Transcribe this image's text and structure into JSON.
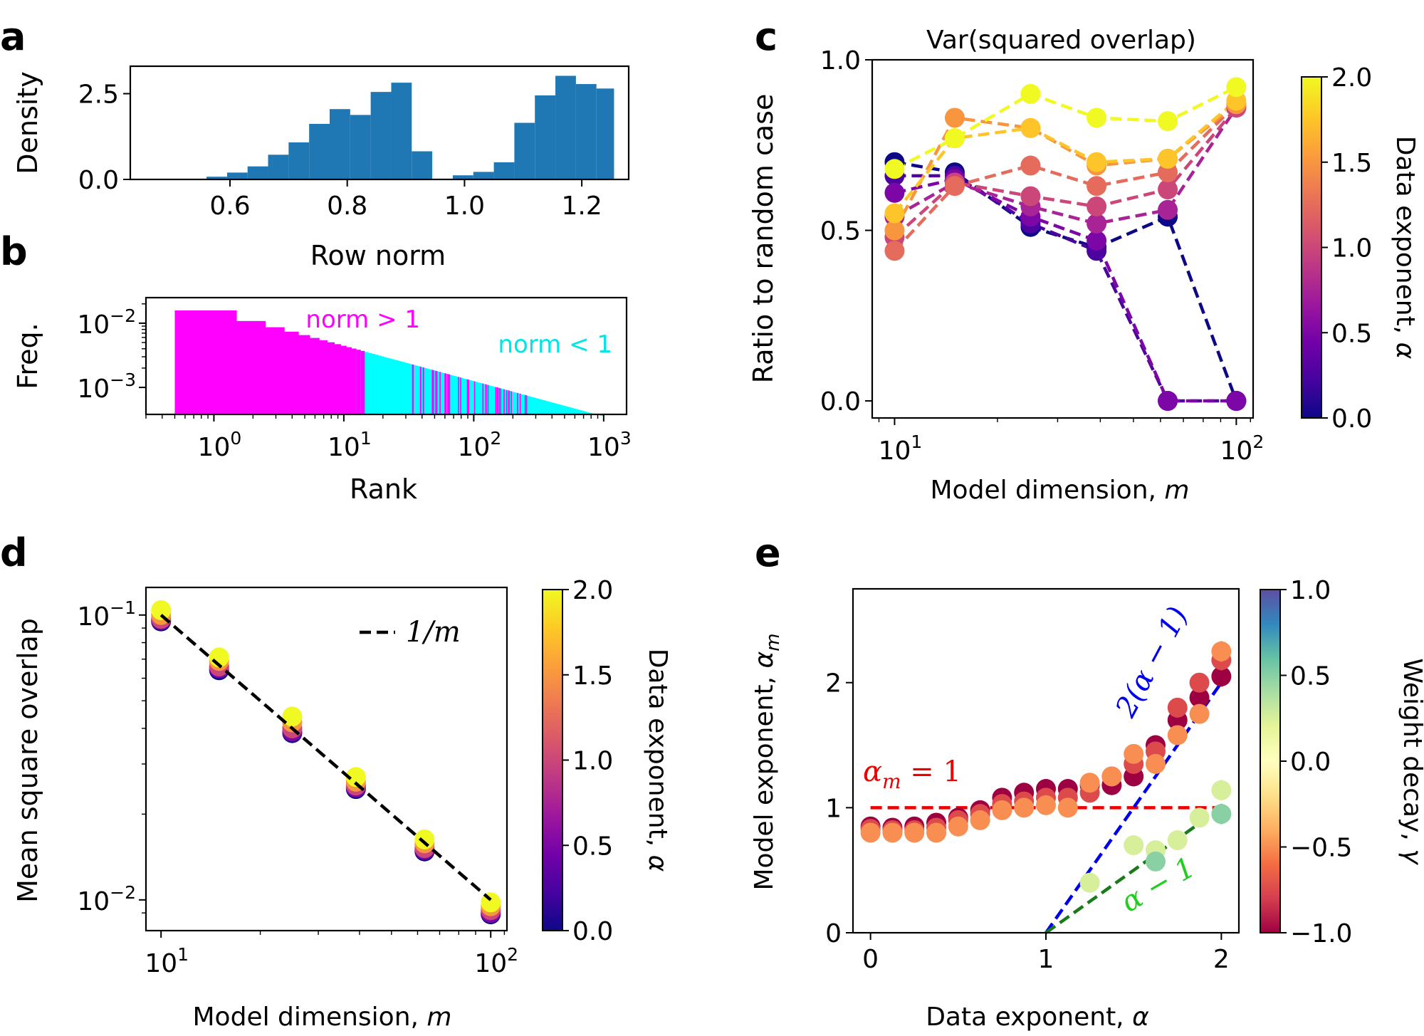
{
  "chart_data": [
    {
      "panel": "a",
      "type": "bar",
      "xlabel": "Row norm",
      "ylabel": "Density",
      "xlim": [
        0.43,
        1.28
      ],
      "ylim": [
        0,
        3.3
      ],
      "xticks": [
        "0.6",
        "0.8",
        "1.0",
        "1.2"
      ],
      "yticks": [
        "0.0",
        "2.5"
      ],
      "bins": [
        {
          "x0": 0.525,
          "x1": 0.56,
          "y": 0.02
        },
        {
          "x0": 0.56,
          "x1": 0.595,
          "y": 0.08
        },
        {
          "x0": 0.595,
          "x1": 0.63,
          "y": 0.2
        },
        {
          "x0": 0.63,
          "x1": 0.665,
          "y": 0.38
        },
        {
          "x0": 0.665,
          "x1": 0.7,
          "y": 0.72
        },
        {
          "x0": 0.7,
          "x1": 0.735,
          "y": 1.08
        },
        {
          "x0": 0.735,
          "x1": 0.77,
          "y": 1.62
        },
        {
          "x0": 0.77,
          "x1": 0.805,
          "y": 2.05
        },
        {
          "x0": 0.805,
          "x1": 0.84,
          "y": 1.88
        },
        {
          "x0": 0.84,
          "x1": 0.875,
          "y": 2.55
        },
        {
          "x0": 0.875,
          "x1": 0.91,
          "y": 2.82
        },
        {
          "x0": 0.91,
          "x1": 0.945,
          "y": 0.82
        },
        {
          "x0": 0.945,
          "x1": 0.98,
          "y": 0.0
        },
        {
          "x0": 0.98,
          "x1": 1.015,
          "y": 0.12
        },
        {
          "x0": 1.015,
          "x1": 1.05,
          "y": 0.22
        },
        {
          "x0": 1.05,
          "x1": 1.085,
          "y": 0.5
        },
        {
          "x0": 1.085,
          "x1": 1.12,
          "y": 1.65
        },
        {
          "x0": 1.12,
          "x1": 1.155,
          "y": 2.45
        },
        {
          "x0": 1.155,
          "x1": 1.19,
          "y": 3.02
        },
        {
          "x0": 1.19,
          "x1": 1.225,
          "y": 2.78
        },
        {
          "x0": 1.225,
          "x1": 1.255,
          "y": 2.65
        }
      ],
      "color": "#1f77b4"
    },
    {
      "panel": "b",
      "type": "bar",
      "xlabel": "Rank",
      "ylabel": "Freq.",
      "xscale": "log",
      "yscale": "log",
      "xlim": [
        0.3,
        1500
      ],
      "ylim": [
        0.00038,
        0.025
      ],
      "xticks": [
        {
          "v": 1,
          "base": "10",
          "exp": "0"
        },
        {
          "v": 10,
          "base": "10",
          "exp": "1"
        },
        {
          "v": 100,
          "base": "10",
          "exp": "2"
        },
        {
          "v": 1000,
          "base": "10",
          "exp": "3"
        }
      ],
      "yticks": [
        {
          "v": 0.01,
          "base": "10",
          "exp": "−2"
        },
        {
          "v": 0.001,
          "base": "10",
          "exp": "−3"
        }
      ],
      "n_ranks": 1000,
      "zipf_amplitude": 0.0158,
      "zipf_exponent": 0.55,
      "annotations": [
        {
          "text": "norm > 1",
          "color": "#ff00ff"
        },
        {
          "text": "norm < 1",
          "color": "#00e5e5"
        }
      ],
      "colors": {
        "norm_gt_1": "#ff00ff",
        "norm_lt_1": "#00ffff"
      }
    },
    {
      "panel": "c",
      "type": "line",
      "title": "Var(squared overlap)",
      "xlabel": "Model dimension, ",
      "xlabel_var": "m",
      "ylabel": "Ratio to random case",
      "xscale": "log",
      "xlim": [
        8.6,
        112
      ],
      "ylim": [
        -0.05,
        1.0
      ],
      "xticks": [
        {
          "v": 10,
          "base": "10",
          "exp": "1"
        },
        {
          "v": 100,
          "base": "10",
          "exp": "2"
        }
      ],
      "yticks": [
        "0.0",
        "0.5",
        "1.0"
      ],
      "x": [
        10,
        15,
        25,
        39,
        63,
        100
      ],
      "series": [
        {
          "alpha": 0.0,
          "values": [
            0.7,
            0.67,
            0.51,
            0.45,
            0.54,
            0.0
          ]
        },
        {
          "alpha": 0.25,
          "values": [
            0.66,
            0.66,
            0.52,
            0.44,
            0.0,
            0.0
          ]
        },
        {
          "alpha": 0.5,
          "values": [
            0.61,
            0.65,
            0.54,
            0.47,
            0.0,
            0.0
          ]
        },
        {
          "alpha": 0.75,
          "values": [
            0.54,
            0.64,
            0.57,
            0.52,
            0.56,
            0.86
          ]
        },
        {
          "alpha": 1.0,
          "values": [
            0.48,
            0.64,
            0.6,
            0.57,
            0.62,
            0.86
          ]
        },
        {
          "alpha": 1.25,
          "values": [
            0.44,
            0.63,
            0.69,
            0.63,
            0.67,
            0.87
          ]
        },
        {
          "alpha": 1.5,
          "values": [
            0.5,
            0.83,
            0.8,
            0.69,
            0.71,
            0.87
          ]
        },
        {
          "alpha": 1.75,
          "values": [
            0.55,
            0.77,
            0.8,
            0.7,
            0.71,
            0.88
          ]
        },
        {
          "alpha": 2.0,
          "values": [
            0.68,
            0.77,
            0.9,
            0.83,
            0.82,
            0.92
          ]
        }
      ],
      "colorbar": {
        "label": "Data exponent, ",
        "label_var": "α",
        "ticks": [
          "0.0",
          "0.5",
          "1.0",
          "1.5",
          "2.0"
        ],
        "colormap": "plasma"
      }
    },
    {
      "panel": "d",
      "type": "scatter",
      "xlabel": "Model dimension, ",
      "xlabel_var": "m",
      "ylabel": "Mean square overlap",
      "xscale": "log",
      "yscale": "log",
      "xlim": [
        9.0,
        112
      ],
      "ylim": [
        0.0078,
        0.125
      ],
      "xticks": [
        {
          "v": 10,
          "base": "10",
          "exp": "1"
        },
        {
          "v": 100,
          "base": "10",
          "exp": "2"
        }
      ],
      "yticks": [
        {
          "v": 0.1,
          "base": "10",
          "exp": "−1"
        },
        {
          "v": 0.01,
          "base": "10",
          "exp": "−2"
        }
      ],
      "x": [
        10,
        15,
        25,
        39,
        63,
        100
      ],
      "alphas": [
        0.0,
        0.5,
        1.0,
        1.5,
        2.0
      ],
      "series": [
        {
          "alpha": 0.0,
          "values": [
            0.095,
            0.064,
            0.0385,
            0.0245,
            0.0148,
            0.0089
          ]
        },
        {
          "alpha": 0.5,
          "values": [
            0.096,
            0.065,
            0.039,
            0.0248,
            0.015,
            0.009
          ]
        },
        {
          "alpha": 1.0,
          "values": [
            0.097,
            0.066,
            0.04,
            0.0252,
            0.0152,
            0.0092
          ]
        },
        {
          "alpha": 1.5,
          "values": [
            0.1,
            0.069,
            0.042,
            0.026,
            0.0158,
            0.0095
          ]
        },
        {
          "alpha": 2.0,
          "values": [
            0.104,
            0.071,
            0.044,
            0.027,
            0.0163,
            0.0098
          ]
        }
      ],
      "reference_line": {
        "label": "1/m",
        "values": [
          0.1,
          0.01
        ]
      },
      "colorbar": {
        "label": "Data exponent, ",
        "label_var": "α",
        "ticks": [
          "0.0",
          "0.5",
          "1.0",
          "1.5",
          "2.0"
        ],
        "colormap": "plasma"
      }
    },
    {
      "panel": "e",
      "type": "scatter",
      "xlabel": "Data exponent, ",
      "xlabel_var": "α",
      "ylabel": "Model exponent, ",
      "ylabel_var": "α",
      "xlim": [
        -0.1,
        2.1
      ],
      "ylim": [
        0,
        2.75
      ],
      "xticks": [
        "0",
        "1",
        "2"
      ],
      "yticks": [
        "0",
        "1",
        "2"
      ],
      "x": [
        0,
        0.125,
        0.25,
        0.375,
        0.5,
        0.625,
        0.75,
        0.875,
        1.0,
        1.125,
        1.25,
        1.375,
        1.5,
        1.625,
        1.75,
        1.875,
        2.0
      ],
      "series": [
        {
          "gamma": -1.0,
          "values": [
            0.85,
            0.84,
            0.85,
            0.88,
            0.92,
            0.98,
            1.08,
            1.12,
            1.15,
            1.15,
            1.18,
            1.18,
            1.25,
            1.5,
            1.7,
            1.88,
            2.05
          ]
        },
        {
          "gamma": -0.75,
          "values": [
            0.83,
            0.82,
            0.82,
            0.84,
            0.9,
            0.95,
            1.03,
            1.05,
            1.08,
            1.08,
            1.12,
            1.25,
            1.35,
            1.45,
            1.8,
            2.0,
            2.18
          ]
        },
        {
          "gamma": -0.5,
          "values": [
            0.8,
            0.8,
            0.8,
            0.8,
            0.85,
            0.9,
            0.98,
            1.0,
            1.02,
            1.0,
            1.2,
            1.25,
            1.43,
            1.35,
            1.58,
            1.75,
            2.25
          ]
        },
        {
          "gamma": 0.25,
          "values": [
            null,
            null,
            null,
            null,
            null,
            null,
            null,
            null,
            null,
            null,
            0.4,
            null,
            0.7,
            0.66,
            0.74,
            0.92,
            1.14
          ]
        },
        {
          "gamma": 0.5,
          "values": [
            null,
            null,
            null,
            null,
            null,
            null,
            null,
            null,
            null,
            null,
            null,
            null,
            null,
            0.57,
            null,
            null,
            0.95
          ]
        }
      ],
      "lines": [
        {
          "label": "2(α − 1)",
          "color": "#0000ee"
        },
        {
          "label": "α − 1",
          "color": "#1a7a1a"
        },
        {
          "label": "α",
          "label_sub": "m",
          "label_rest": " = 1",
          "color": "#ee0000"
        }
      ],
      "colorbar": {
        "label": "Weight decay, ",
        "label_var": "γ",
        "ticks": [
          "−1.0",
          "−0.5",
          "0.0",
          "0.5",
          "1.0"
        ],
        "colormap": "Spectral"
      }
    }
  ],
  "panel_labels": [
    "a",
    "b",
    "c",
    "d",
    "e"
  ]
}
